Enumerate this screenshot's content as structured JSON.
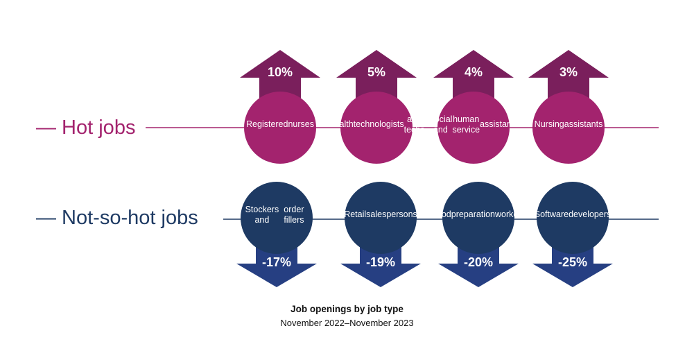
{
  "colors": {
    "hot": "#A3236E",
    "hot_dark": "#7A1F5C",
    "not_hot": "#1E3A63",
    "not_hot_dark": "#263F82",
    "text": "#111111"
  },
  "hot": {
    "label": "— Hot jobs",
    "items": [
      {
        "name": "Registered nurses",
        "lines": [
          "Registered",
          "nurses"
        ],
        "change": "10%"
      },
      {
        "name": "Health technologists and techs",
        "lines": [
          "Health",
          "technologists",
          "and techs"
        ],
        "change": "5%"
      },
      {
        "name": "Social and human service assistants",
        "lines": [
          "Social and",
          "human service",
          "assistants"
        ],
        "change": "4%"
      },
      {
        "name": "Nursing assistants",
        "lines": [
          "Nursing",
          "assistants"
        ],
        "change": "3%"
      }
    ]
  },
  "not_hot": {
    "label": "— Not-so-hot jobs",
    "items": [
      {
        "name": "Stockers and order fillers",
        "lines": [
          "Stockers and",
          "order fillers"
        ],
        "change": "-17%"
      },
      {
        "name": "Retail salespersons",
        "lines": [
          "Retail",
          "salespersons"
        ],
        "change": "-19%"
      },
      {
        "name": "Food preparation workers",
        "lines": [
          "Food",
          "preparation",
          "workers"
        ],
        "change": "-20%"
      },
      {
        "name": "Software developers",
        "lines": [
          "Software",
          "developers"
        ],
        "change": "-25%"
      }
    ]
  },
  "caption": {
    "title": "Job openings by job type",
    "subtitle": "November 2022–November 2023"
  }
}
